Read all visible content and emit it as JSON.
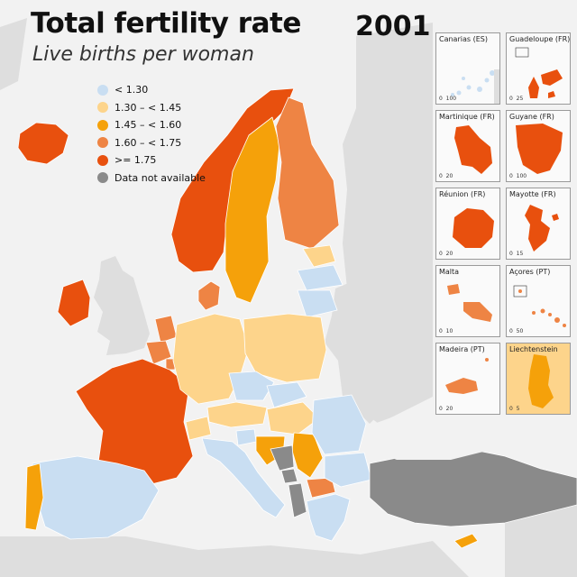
{
  "title": "Total fertility rate",
  "subtitle": "Live births per woman",
  "year": "2001",
  "legend": [
    {
      "label": "< 1.30",
      "color": "#c9def2"
    },
    {
      "label": "1.30 – < 1.45",
      "color": "#fdd48b"
    },
    {
      "label": "1.45 – < 1.60",
      "color": "#f5a10a"
    },
    {
      "label": "1.60 – < 1.75",
      "color": "#ee8444"
    },
    {
      "label": ">= 1.75",
      "color": "#e8500e"
    },
    {
      "label": "Data not available",
      "color": "#8a8a8a"
    }
  ],
  "colors": {
    "land": "#dedede",
    "sea": "#f2f2f2",
    "border": "#ffffff"
  },
  "insets": [
    {
      "id": "canarias",
      "title": "Canarias (ES)",
      "scale_left": "0",
      "scale_right": "100",
      "fill": "#c9def2"
    },
    {
      "id": "guadeloupe",
      "title": "Guadeloupe (FR)",
      "scale_left": "0",
      "scale_right": "25",
      "fill": "#e8500e"
    },
    {
      "id": "martinique",
      "title": "Martinique (FR)",
      "scale_left": "0",
      "scale_right": "20",
      "fill": "#e8500e"
    },
    {
      "id": "guyane",
      "title": "Guyane (FR)",
      "scale_left": "0",
      "scale_right": "100",
      "fill": "#e8500e"
    },
    {
      "id": "reunion",
      "title": "Réunion (FR)",
      "scale_left": "0",
      "scale_right": "20",
      "fill": "#e8500e"
    },
    {
      "id": "mayotte",
      "title": "Mayotte (FR)",
      "scale_left": "0",
      "scale_right": "15",
      "fill": "#e8500e"
    },
    {
      "id": "malta",
      "title": "Malta",
      "scale_left": "0",
      "scale_right": "10",
      "fill": "#ee8444"
    },
    {
      "id": "acores",
      "title": "Açores (PT)",
      "scale_left": "0",
      "scale_right": "50",
      "fill": "#ee8444"
    },
    {
      "id": "madeira",
      "title": "Madeira (PT)",
      "scale_left": "0",
      "scale_right": "20",
      "fill": "#ee8444"
    },
    {
      "id": "liechtenstein",
      "title": "Liechtenstein",
      "scale_left": "0",
      "scale_right": "5",
      "fill": "#f5a10a"
    }
  ],
  "countries": [
    {
      "name": "Iceland",
      "class": ">= 1.75"
    },
    {
      "name": "Ireland",
      "class": ">= 1.75"
    },
    {
      "name": "United Kingdom",
      "class": "not-shown"
    },
    {
      "name": "Norway",
      "class": ">= 1.75"
    },
    {
      "name": "Sweden",
      "class": "1.45 – < 1.60"
    },
    {
      "name": "Finland",
      "class": "1.60 – < 1.75"
    },
    {
      "name": "Denmark",
      "class": "1.60 – < 1.75"
    },
    {
      "name": "Estonia",
      "class": "1.30 – < 1.45"
    },
    {
      "name": "Latvia",
      "class": "< 1.30"
    },
    {
      "name": "Lithuania",
      "class": "< 1.30"
    },
    {
      "name": "Netherlands",
      "class": "1.60 – < 1.75"
    },
    {
      "name": "Belgium",
      "class": "1.60 – < 1.75"
    },
    {
      "name": "Luxembourg",
      "class": "1.60 – < 1.75"
    },
    {
      "name": "France",
      "class": ">= 1.75"
    },
    {
      "name": "Germany",
      "class": "1.30 – < 1.45"
    },
    {
      "name": "Poland",
      "class": "1.30 – < 1.45"
    },
    {
      "name": "Czechia",
      "class": "< 1.30"
    },
    {
      "name": "Slovakia",
      "class": "< 1.30"
    },
    {
      "name": "Austria",
      "class": "1.30 – < 1.45"
    },
    {
      "name": "Switzerland",
      "class": "1.30 – < 1.45"
    },
    {
      "name": "Hungary",
      "class": "1.30 – < 1.45"
    },
    {
      "name": "Slovenia",
      "class": "< 1.30"
    },
    {
      "name": "Croatia",
      "class": "1.45 – < 1.60"
    },
    {
      "name": "Serbia",
      "class": "1.45 – < 1.60"
    },
    {
      "name": "Bosnia and Herzegovina",
      "class": "Data not available"
    },
    {
      "name": "Montenegro",
      "class": "Data not available"
    },
    {
      "name": "Albania",
      "class": "Data not available"
    },
    {
      "name": "North Macedonia",
      "class": "1.60 – < 1.75"
    },
    {
      "name": "Romania",
      "class": "< 1.30"
    },
    {
      "name": "Bulgaria",
      "class": "< 1.30"
    },
    {
      "name": "Greece",
      "class": "< 1.30"
    },
    {
      "name": "Turkey",
      "class": "Data not available"
    },
    {
      "name": "Cyprus",
      "class": "1.45 – < 1.60"
    },
    {
      "name": "Italy",
      "class": "< 1.30"
    },
    {
      "name": "Spain",
      "class": "< 1.30"
    },
    {
      "name": "Portugal",
      "class": "1.45 – < 1.60"
    }
  ]
}
